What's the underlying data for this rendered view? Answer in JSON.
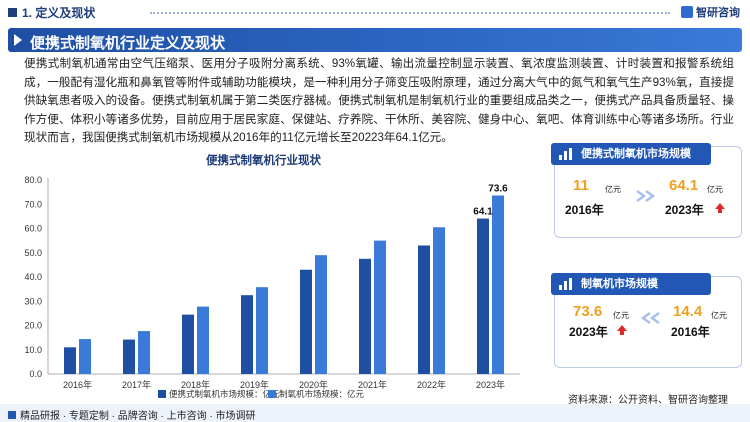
{
  "header": {
    "section_title": "1. 定义及现状",
    "logo_text": "智研咨询",
    "banner_title": "便携式制氧机行业定义及现状"
  },
  "intro_text": "便携式制氧机通常由空气压缩泵、医用分子吸附分离系统、93%氧罐、输出流量控制显示装置、氧浓度监测装置、计时装置和报警系统组成，一般配有湿化瓶和鼻氧管等附件或辅助功能模块，是一种利用分子筛变压吸附原理，通过分离大气中的氮气和氧气生产93%氧，直接提供缺氧患者吸入的设备。便携式制氧机属于第二类医疗器械。便携式制氧机是制氧机行业的重要组成品类之一，便携式产品具备质量轻、操作方便、体积小等诸多优势，目前应用于居民家庭、保健站、疗养院、干休所、美容院、健身中心、氧吧、体育训练中心等诸多场所。行业现状而言，我国便携式制氧机市场规模从2016年的11亿元增长至20223年64.1亿元。",
  "colors": {
    "series1": "#1f4fa3",
    "series2": "#3a7ad8",
    "accent_orange": "#f0a020",
    "up_red": "#e02a2a"
  },
  "chart_data": {
    "type": "bar",
    "title": "便携式制氧机行业现状",
    "categories": [
      "2016年",
      "2017年",
      "2018年",
      "2019年",
      "2020年",
      "2021年",
      "2022年",
      "2023年"
    ],
    "series": [
      {
        "name": "便携式制氧机市场规模：亿元",
        "values": [
          11,
          14.2,
          24.5,
          32.5,
          43,
          47.5,
          53,
          64.1
        ]
      },
      {
        "name": "制氧机市场规模：亿元",
        "values": [
          14.4,
          17.7,
          27.8,
          35.8,
          49,
          55,
          60.5,
          73.6
        ]
      }
    ],
    "data_labels": [
      "64.1",
      "73.6"
    ],
    "yticks": [
      "0.0",
      "10.0",
      "20.0",
      "30.0",
      "40.0",
      "50.0",
      "60.0",
      "70.0",
      "80.0"
    ],
    "ylim": [
      0,
      80
    ],
    "grid": false,
    "legend": "bottom"
  },
  "cards": [
    {
      "title": "便携式制氧机市场规模",
      "left_value": "11",
      "left_unit": "亿元",
      "left_year": "2016年",
      "right_value": "64.1",
      "right_unit": "亿元",
      "right_year": "2023年"
    },
    {
      "title": "制氧机市场规模",
      "left_value": "73.6",
      "left_unit": "亿元",
      "left_year": "2023年",
      "right_value": "14.4",
      "right_unit": "亿元",
      "right_year": "2016年"
    }
  ],
  "source_text": "资料来源：公开资料、智研咨询整理",
  "footer": {
    "left": "精品研报 · 专题定制 · 品牌咨询 · 上市咨询 · 市场调研"
  }
}
